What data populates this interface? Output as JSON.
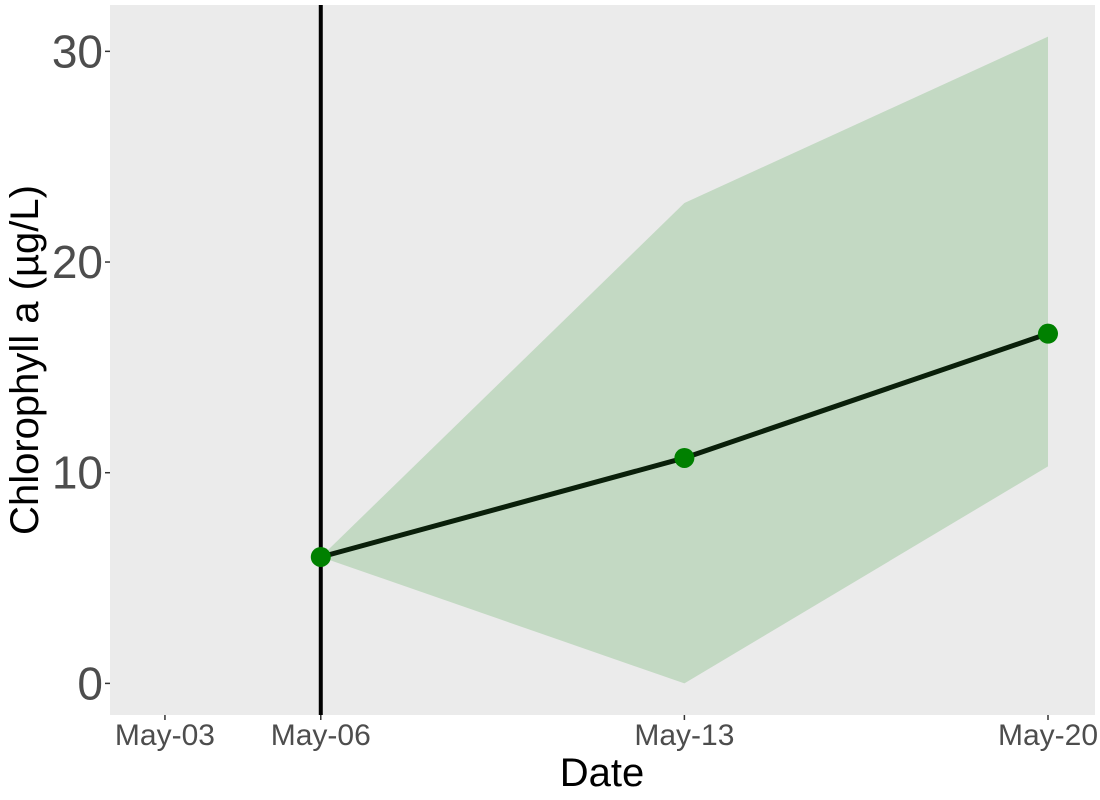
{
  "chart_data": {
    "type": "line",
    "title": "",
    "xlabel": "Date",
    "ylabel": "Chlorophyll a (µg/L)",
    "x_ticks": [
      "May-03",
      "May-06",
      "May-13",
      "May-20"
    ],
    "y_ticks": [
      0,
      10,
      20,
      30
    ],
    "ylim": [
      -1.5,
      32.2
    ],
    "xlim": [
      "May-02",
      "May-20"
    ],
    "series": [
      {
        "x": [
          "May-06",
          "May-13",
          "May-20"
        ],
        "y": [
          6.0,
          10.7,
          16.6
        ],
        "lower": [
          6.0,
          0.0,
          10.3
        ],
        "upper": [
          6.0,
          22.8,
          30.7
        ],
        "color": "#008000",
        "band_color": "#c3d9c3"
      }
    ],
    "vertical_line": {
      "x": "May-06",
      "color": "#000000"
    },
    "grid": false,
    "background": "#ebebeb"
  }
}
